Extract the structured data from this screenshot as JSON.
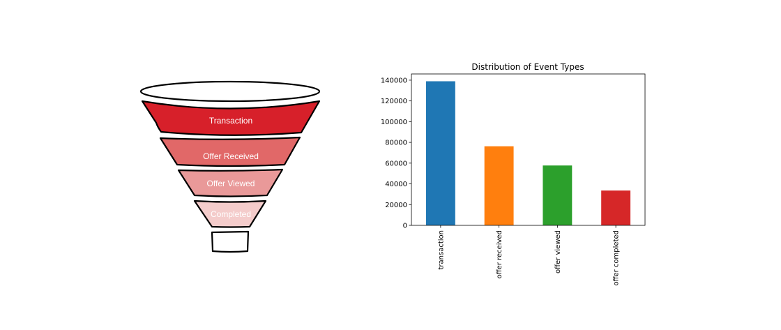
{
  "funnel": {
    "stages": [
      {
        "label": "Transaction",
        "color": "#d7202a"
      },
      {
        "label": "Offer Received",
        "color": "#e16868"
      },
      {
        "label": "Offer Viewed",
        "color": "#e99999"
      },
      {
        "label": "Completed",
        "color": "#f4cccb"
      }
    ]
  },
  "chart_data": {
    "type": "bar",
    "title": "Distribution of Event Types",
    "xlabel": "",
    "ylabel": "",
    "categories": [
      "transaction",
      "offer received",
      "offer viewed",
      "offer completed"
    ],
    "values": [
      138953,
      76277,
      57725,
      33579
    ],
    "colors": [
      "#1f77b4",
      "#ff7f0e",
      "#2ca02c",
      "#d62728"
    ],
    "ylim": [
      0,
      146000
    ],
    "yticks": [
      0,
      20000,
      40000,
      60000,
      80000,
      100000,
      120000,
      140000
    ],
    "grid": false,
    "legend": "none"
  }
}
